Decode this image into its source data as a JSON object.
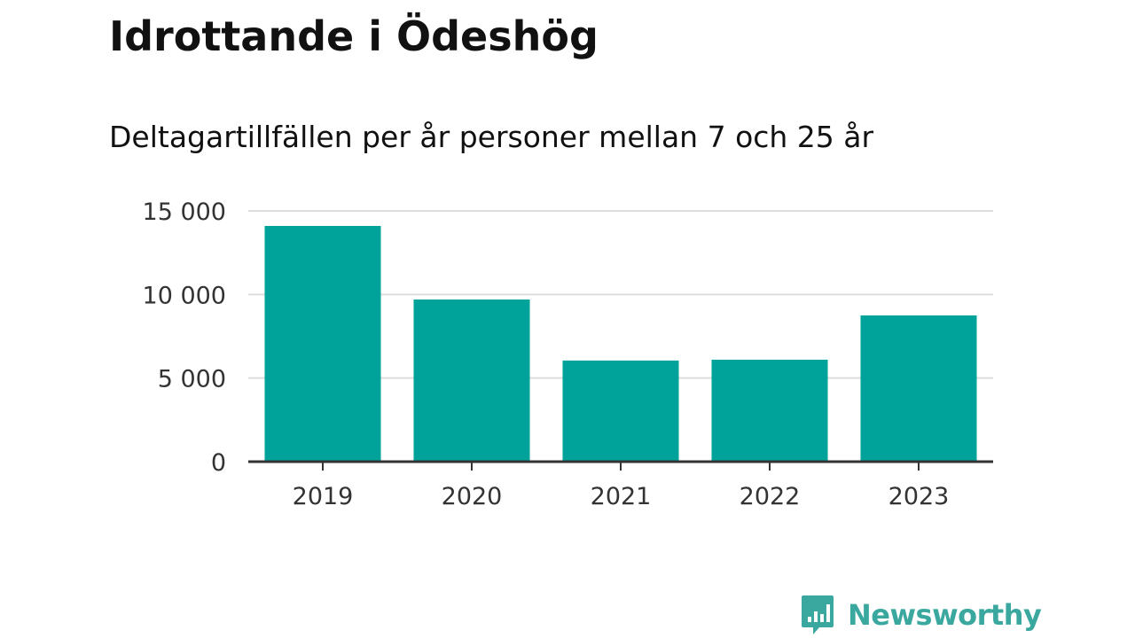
{
  "header": {
    "title": "Idrottande i Ödeshög",
    "subtitle": "Deltagartillfällen per år personer mellan 7 och 25 år"
  },
  "colors": {
    "bar": "#00a39a",
    "grid": "#dddddd",
    "axis": "#333333",
    "brand": "#3aa89e"
  },
  "brand": {
    "name": "Newsworthy",
    "icon": "newsworthy-logo-icon"
  },
  "chart_data": {
    "type": "bar",
    "categories": [
      "2019",
      "2020",
      "2021",
      "2022",
      "2023"
    ],
    "values": [
      14100,
      9700,
      6050,
      6100,
      8750
    ],
    "ylim": [
      0,
      15000
    ],
    "yticks": [
      0,
      5000,
      10000,
      15000
    ],
    "ytick_labels": [
      "0",
      "5 000",
      "10 000",
      "15 000"
    ],
    "grid": true,
    "legend": "none"
  }
}
